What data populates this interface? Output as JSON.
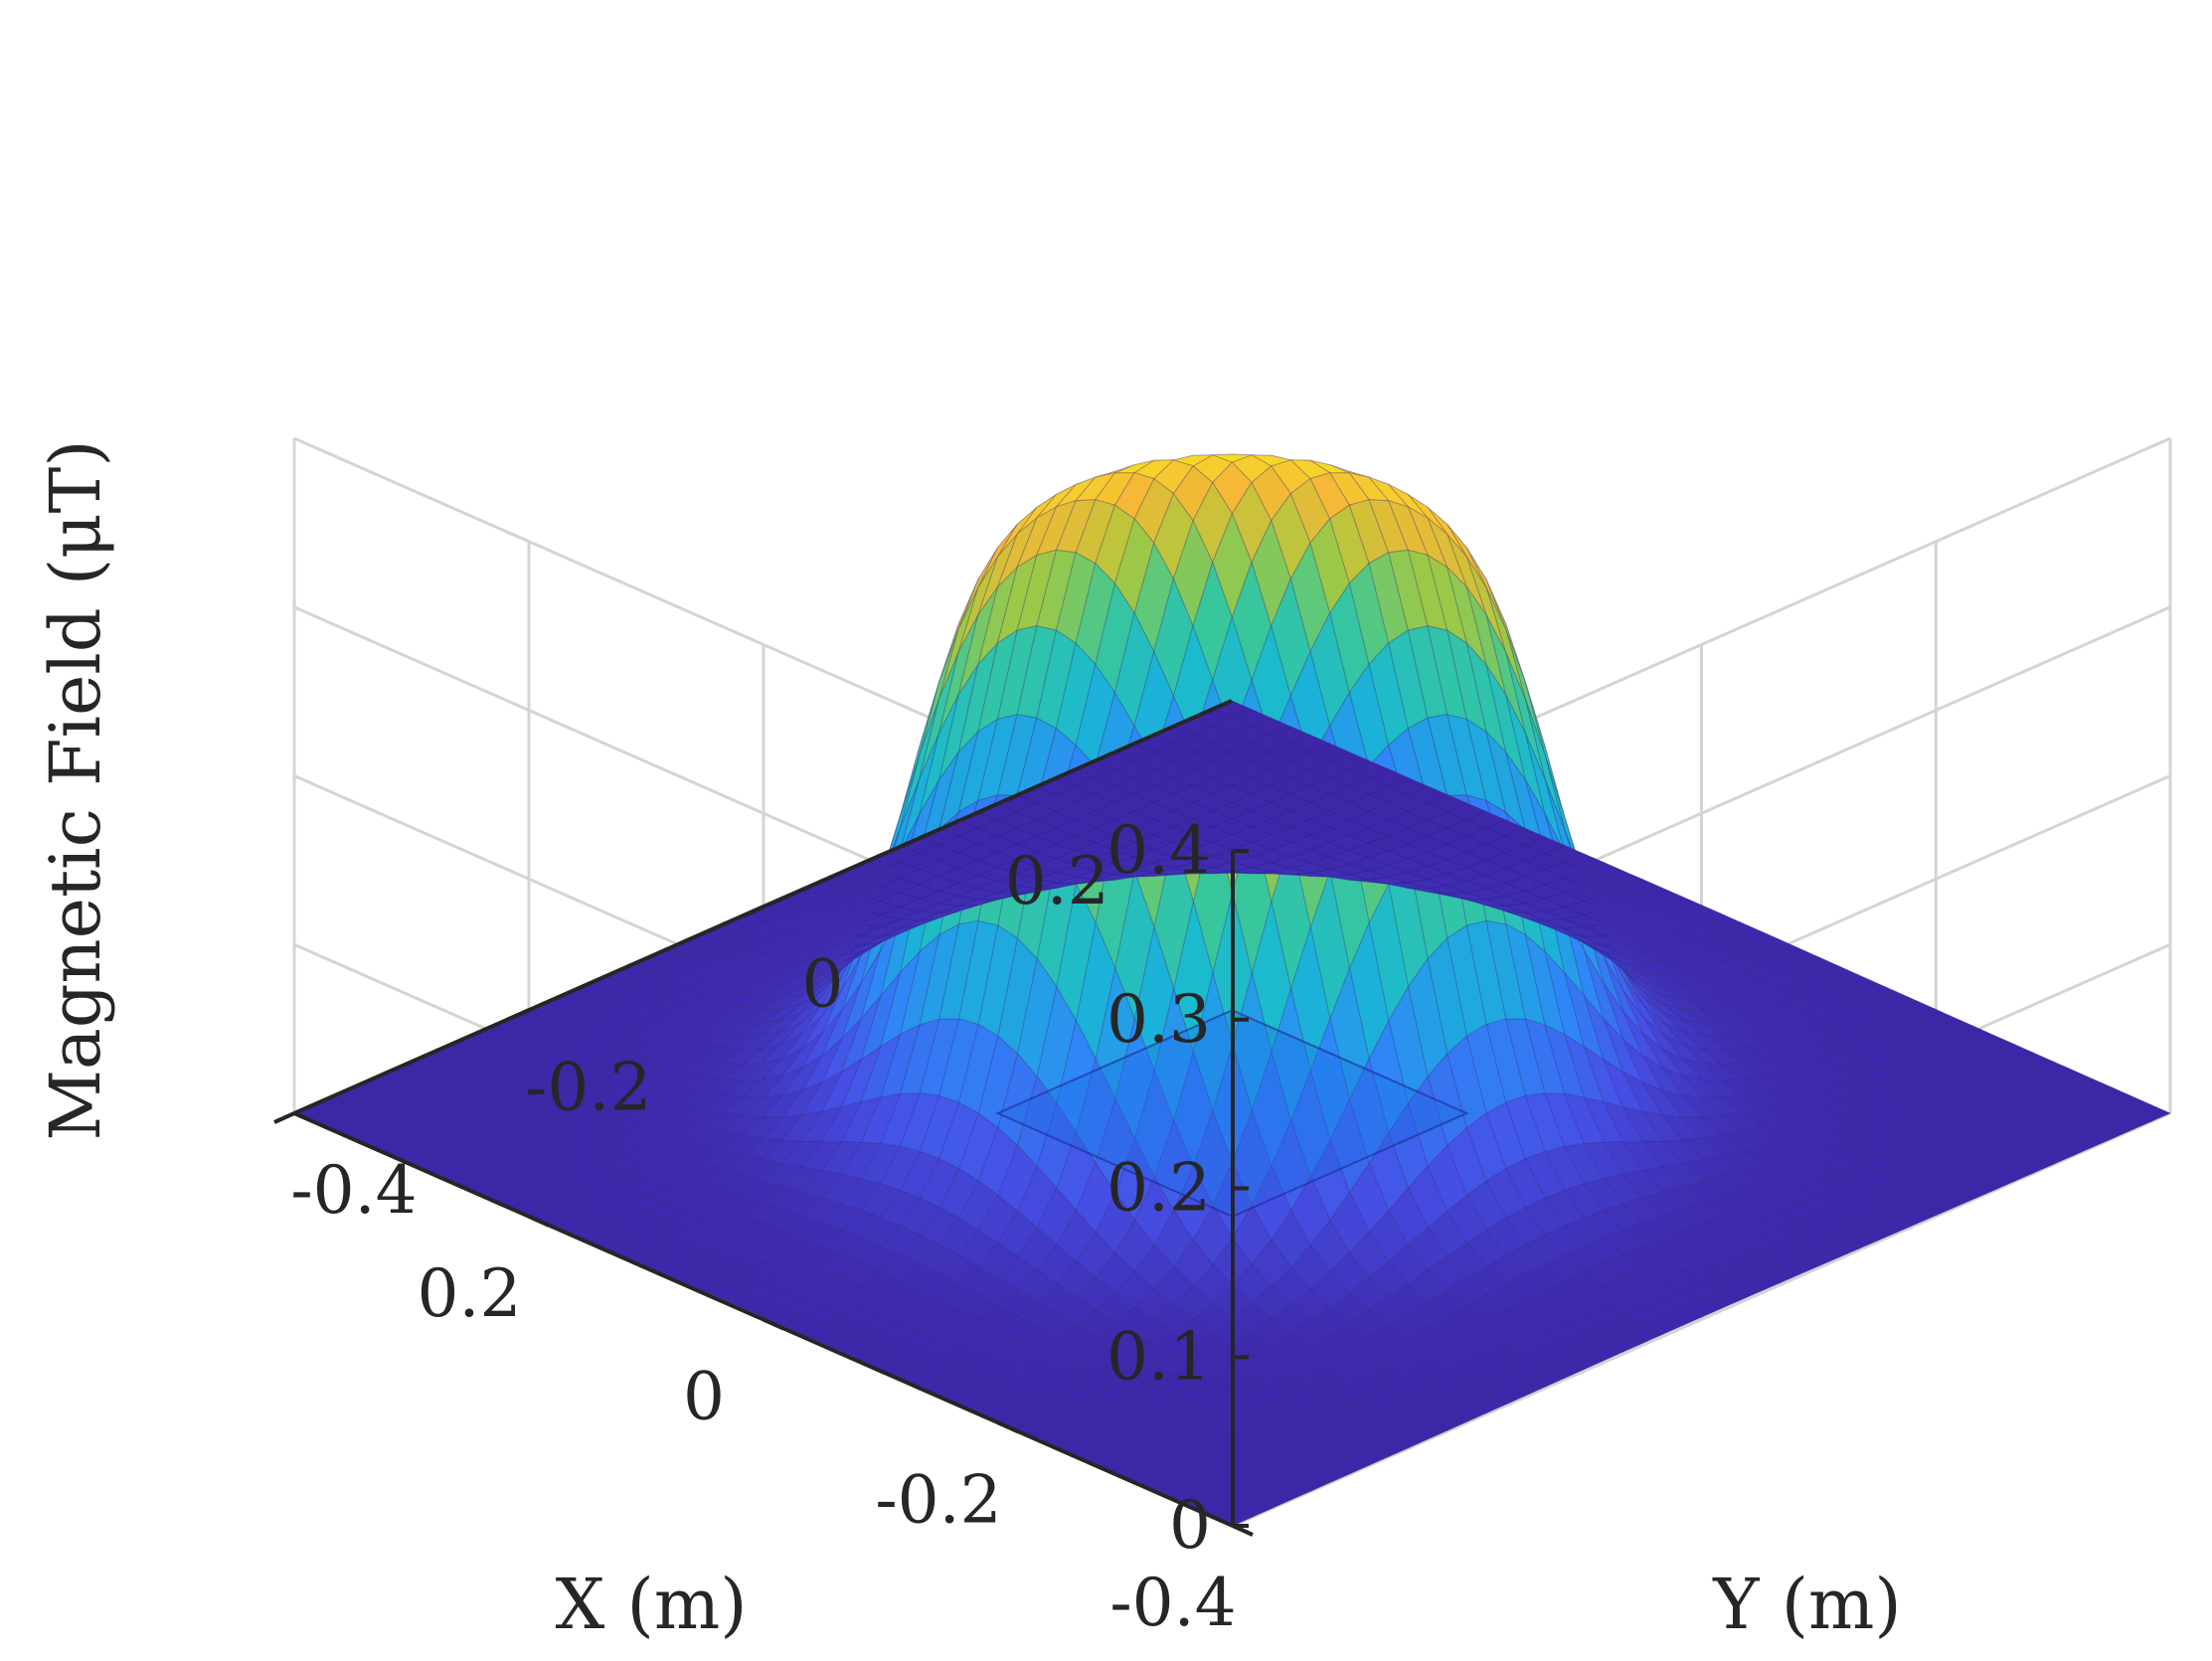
{
  "chart_data": {
    "type": "surface",
    "title": "",
    "xlabel": "X (m)",
    "ylabel": "Y (m)",
    "zlabel": "Magnetic Field (μT)",
    "xlim": [
      -0.4,
      0.4
    ],
    "ylim": [
      -0.4,
      0.4
    ],
    "zlim": [
      0,
      0.4
    ],
    "x_ticks": [
      -0.4,
      -0.2,
      0,
      0.2
    ],
    "x_tick_labels": [
      "-0.4",
      "-0.2",
      "0",
      "0.2"
    ],
    "y_ticks": [
      -0.4,
      -0.2,
      0,
      0.2
    ],
    "y_tick_labels": [
      "-0.4",
      "-0.2",
      "0",
      "0.2"
    ],
    "z_ticks": [
      0,
      0.1,
      0.2,
      0.3,
      0.4
    ],
    "z_tick_labels": [
      "0",
      "0.1",
      "0.2",
      "0.3",
      "0.4"
    ],
    "grid": true,
    "colormap": "parula",
    "colors": {
      "low": "#3e26a8",
      "mid": "#1fc0b9",
      "high": "#f9fb15",
      "grid": "#d4d4d4",
      "axis": "#262626"
    },
    "surface": {
      "peak_value": 0.345,
      "center_value": 0.31,
      "peak_ring_radius_m": 0.08,
      "falloff_radius_m": 0.2,
      "floor_value": 0
    },
    "source_square": {
      "x_range": [
        -0.1,
        0.1
      ],
      "y_range": [
        -0.1,
        0.1
      ],
      "z": 0
    }
  }
}
